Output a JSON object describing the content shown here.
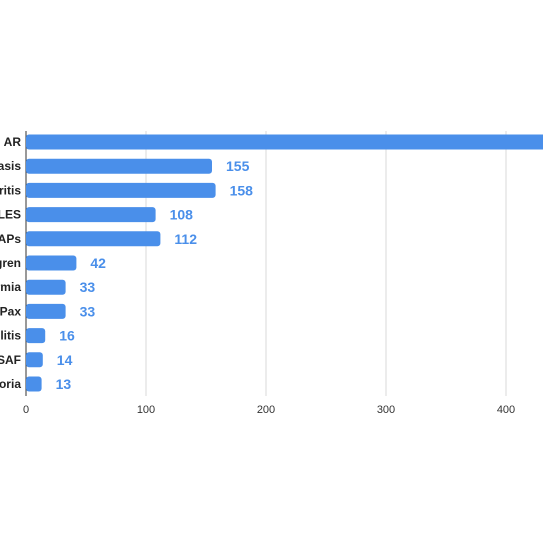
{
  "chart_data": {
    "type": "bar",
    "orientation": "horizontal",
    "categories": [
      "AR",
      "asis",
      "tritis",
      "LES",
      "APs",
      "gren",
      "rmia",
      "sPax",
      "ulitis",
      "SAF",
      "toria"
    ],
    "values": [
      440,
      155,
      158,
      108,
      112,
      42,
      33,
      33,
      16,
      14,
      13
    ],
    "data_labels": [
      "",
      "155",
      "158",
      "108",
      "112",
      "42",
      "33",
      "33",
      "16",
      "14",
      "13"
    ],
    "x_ticks": [
      "0",
      "100",
      "200",
      "300",
      "400"
    ],
    "xlim": [
      0,
      430
    ],
    "title": "",
    "xlabel": "",
    "ylabel": "",
    "grid": true,
    "legend": "none",
    "colors": {
      "bar": "#4a8fea",
      "value_label": "#4a8fea",
      "grid": "#d9d9d9",
      "axis": "#333333"
    }
  }
}
